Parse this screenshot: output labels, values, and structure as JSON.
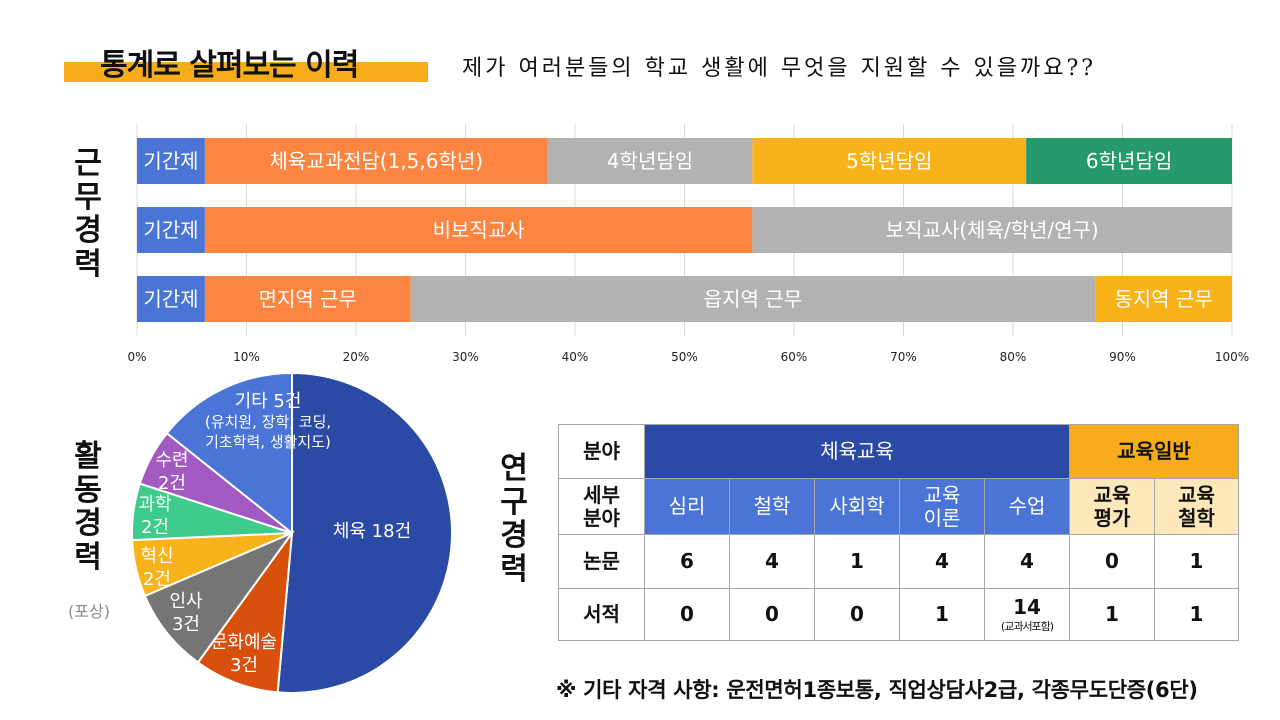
{
  "title": "통계로 살펴보는 이력",
  "tagline": "제가 여러분들의 학교 생활에 무엇을 지원할 수 있을까요??",
  "labels": {
    "work": [
      "근",
      "무",
      "경",
      "력"
    ],
    "activity": [
      "활",
      "동",
      "경",
      "력"
    ],
    "activity_sub": "(포상)",
    "research": [
      "연",
      "구",
      "경",
      "력"
    ]
  },
  "colors": {
    "blue_light": "#4a74d6",
    "orange": "#fb8541",
    "gray": "#b2b2b2",
    "gold": "#f9b21a",
    "green": "#259a6d",
    "navy": "#2b4aa6",
    "dark_orange": "#d9500c",
    "dark_gray": "#757575",
    "purple": "#a259c2",
    "mint": "#3ecb8c"
  },
  "chart_data": [
    {
      "type": "bar",
      "orientation": "horizontal-stacked-100",
      "xlim": [
        0,
        100
      ],
      "x_ticks": [
        "0%",
        "10%",
        "20%",
        "30%",
        "40%",
        "50%",
        "60%",
        "70%",
        "80%",
        "90%",
        "100%"
      ],
      "grid": true,
      "rows": [
        {
          "segments": [
            {
              "label": "기간제",
              "value": 6.2,
              "color": "#4a74d6"
            },
            {
              "label": "체육교과전담(1,5,6학년)",
              "value": 31.3,
              "color": "#fb8541"
            },
            {
              "label": "4학년담임",
              "value": 18.7,
              "color": "#b2b2b2"
            },
            {
              "label": "5학년담임",
              "value": 25.0,
              "color": "#f9b21a"
            },
            {
              "label": "6학년담임",
              "value": 18.8,
              "color": "#259a6d"
            }
          ]
        },
        {
          "segments": [
            {
              "label": "기간제",
              "value": 6.2,
              "color": "#4a74d6"
            },
            {
              "label": "비보직교사",
              "value": 50.0,
              "color": "#fb8541"
            },
            {
              "label": "보직교사(체육/학년/연구)",
              "value": 43.8,
              "color": "#b2b2b2"
            }
          ]
        },
        {
          "segments": [
            {
              "label": "기간제",
              "value": 6.2,
              "color": "#4a74d6"
            },
            {
              "label": "면지역 근무",
              "value": 18.8,
              "color": "#fb8541"
            },
            {
              "label": "읍지역 근무",
              "value": 62.5,
              "color": "#b2b2b2"
            },
            {
              "label": "동지역 근무",
              "value": 12.5,
              "color": "#f9b21a"
            }
          ]
        }
      ]
    },
    {
      "type": "pie",
      "slices": [
        {
          "line1": "체육 18건",
          "line2": "",
          "value": 18,
          "color": "#2b4aa6"
        },
        {
          "line1": "문화예술",
          "line2": "3건",
          "value": 3,
          "color": "#d9500c"
        },
        {
          "line1": "인사",
          "line2": "3건",
          "value": 3,
          "color": "#757575"
        },
        {
          "line1": "혁신",
          "line2": "2건",
          "value": 2,
          "color": "#f9b21a"
        },
        {
          "line1": "과학",
          "line2": "2건",
          "value": 2,
          "color": "#3ecb8c"
        },
        {
          "line1": "수련",
          "line2": "2건",
          "value": 2,
          "color": "#a259c2"
        },
        {
          "line1": "기타 5건",
          "line2": "(유치원, 장학, 코딩,",
          "line3": "기초학력, 생활지도)",
          "value": 5,
          "color": "#4a74d6"
        }
      ]
    },
    {
      "type": "table",
      "groups": [
        {
          "label": "분야",
          "span": 1
        },
        {
          "label": "체육교육",
          "span": 5
        },
        {
          "label": "교육일반",
          "span": 2
        }
      ],
      "sub_header": {
        "label": "세부 분야",
        "columns": [
          "심리",
          "철학",
          "사회학",
          "교육 이론",
          "수업",
          "교육 평가",
          "교육 철학"
        ]
      },
      "rows": [
        {
          "label": "논문",
          "values": [
            "6",
            "4",
            "1",
            "4",
            "4",
            "0",
            "1"
          ]
        },
        {
          "label": "서적",
          "values": [
            "0",
            "0",
            "0",
            "1",
            "14",
            "1",
            "1"
          ],
          "notes": [
            "",
            "",
            "",
            "",
            "(교과서포함)",
            "",
            ""
          ]
        }
      ]
    }
  ],
  "footnote": "※ 기타 자격 사항: 운전면허1종보통, 직업상담사2급, 각종무도단증(6단)"
}
